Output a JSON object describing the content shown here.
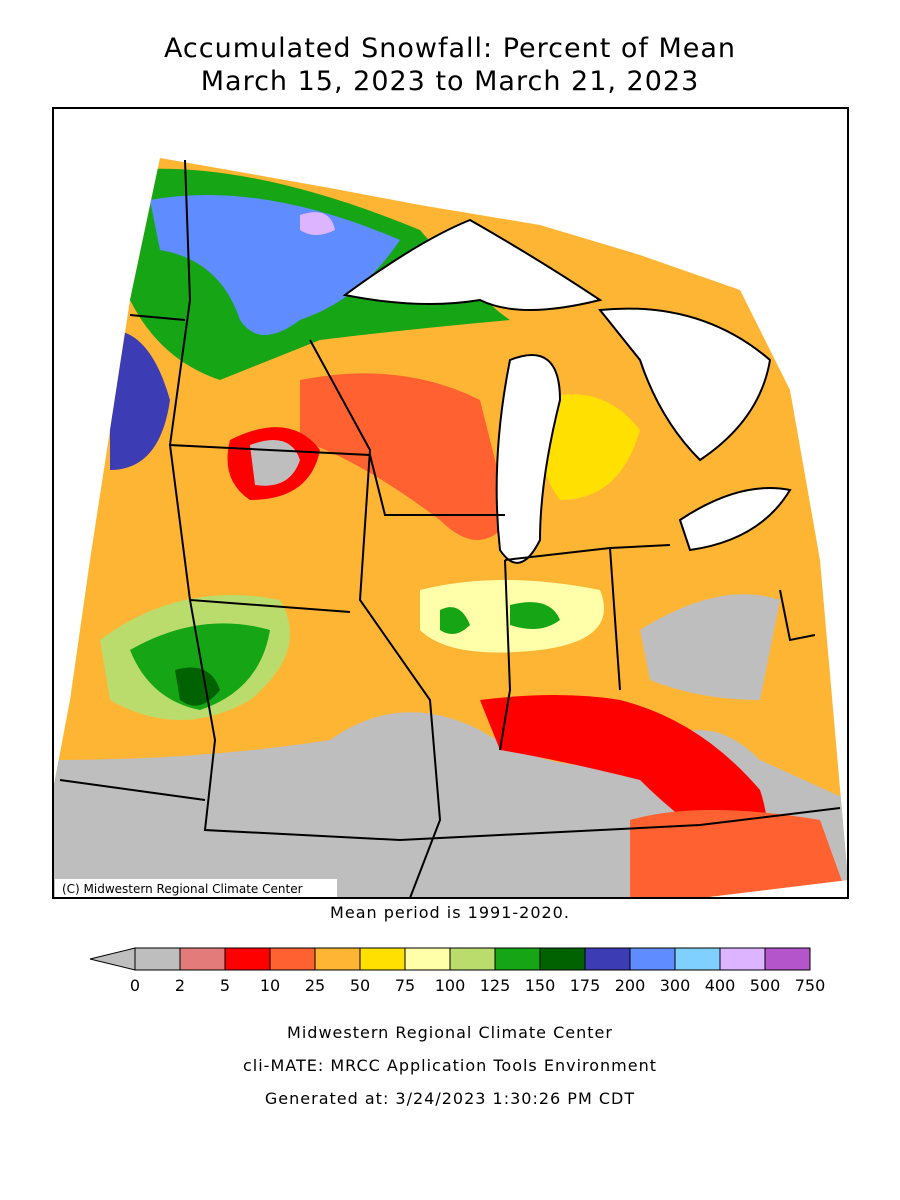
{
  "title": [
    "Accumulated Snowfall: Percent of Mean",
    "March 15, 2023 to March 21, 2023"
  ],
  "credit": "(C) Midwestern Regional Climate Center",
  "note": "Mean period is 1991-2020.",
  "legend": {
    "colors": [
      "#bebebe",
      "#e37b7b",
      "#ff0000",
      "#ff6130",
      "#ffb534",
      "#ffe000",
      "#ffffaa",
      "#b9dc6c",
      "#15a515",
      "#006200",
      "#3c3cb4",
      "#5f8cff",
      "#80d0ff",
      "#dcb4ff",
      "#b455cc"
    ],
    "labels": [
      0,
      2,
      5,
      10,
      25,
      50,
      75,
      100,
      125,
      150,
      175,
      200,
      300,
      400,
      500,
      750
    ]
  },
  "footer": [
    "Midwestern Regional Climate Center",
    "cli-MATE: MRCC Application Tools Environment",
    "Generated at: 3/24/2023 1:30:26 PM CDT"
  ]
}
